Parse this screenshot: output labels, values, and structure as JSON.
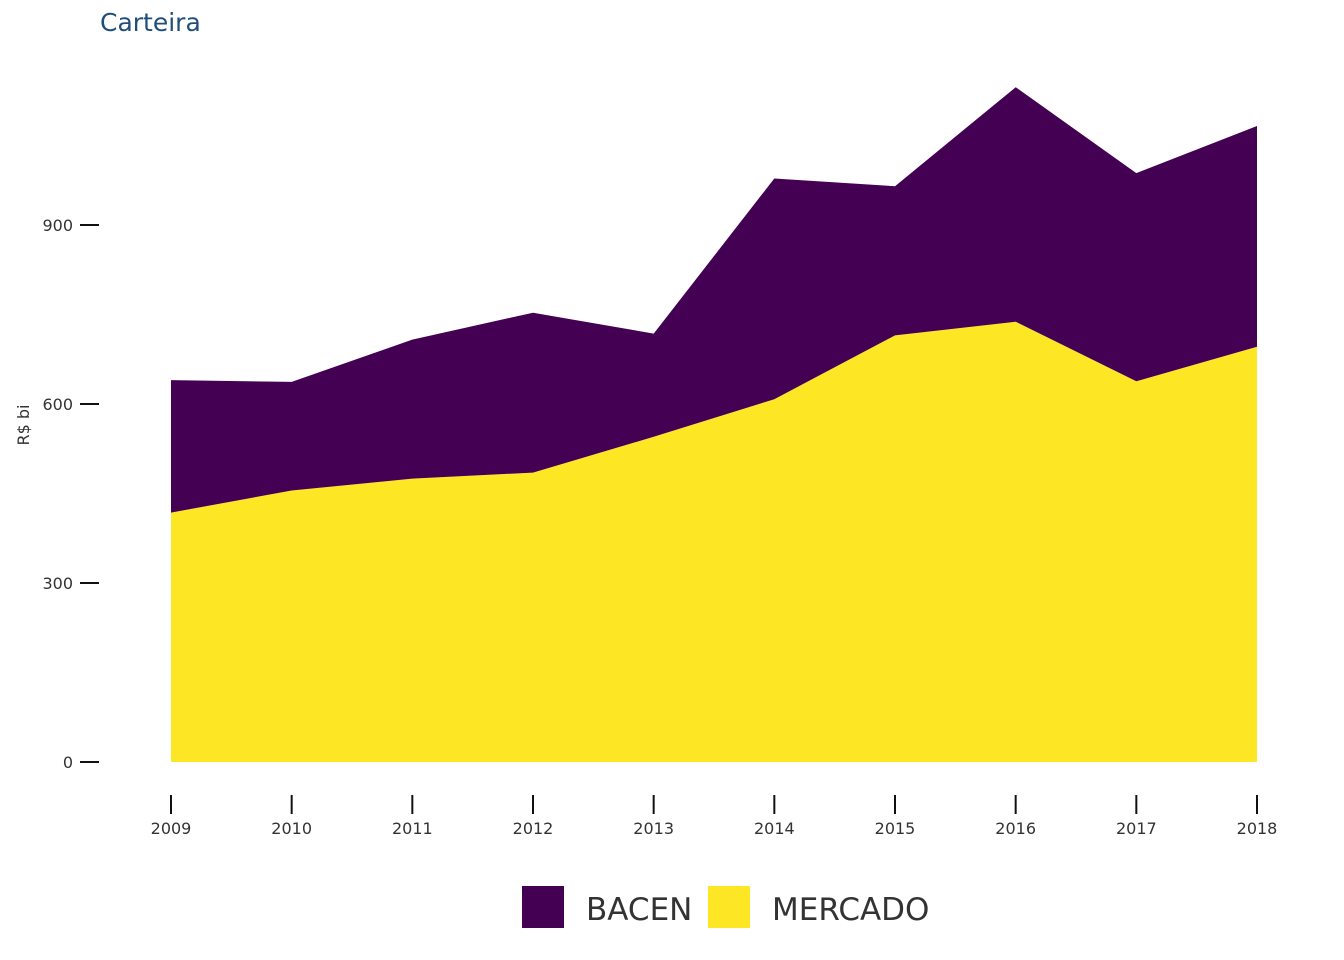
{
  "chart_data": {
    "type": "area",
    "stacked": true,
    "title": "Carteira",
    "ylabel": "R$ bi",
    "xlabel": "",
    "x": [
      2009,
      2010,
      2011,
      2012,
      2013,
      2014,
      2015,
      2016,
      2017,
      2018
    ],
    "x_tick_labels": [
      "2009",
      "2010",
      "2011",
      "2012",
      "2013",
      "2014",
      "2015",
      "2016",
      "2017",
      "2018"
    ],
    "ylim": [
      0,
      1150
    ],
    "y_ticks": [
      0,
      300,
      600,
      900
    ],
    "y_tick_labels": [
      "0",
      "300",
      "600",
      "900"
    ],
    "series": [
      {
        "name": "MERCADO",
        "color": "#fde725",
        "values": [
          418,
          455,
          475,
          485,
          545,
          608,
          715,
          738,
          638,
          696
        ]
      },
      {
        "name": "BACEN",
        "color": "#440154",
        "values": [
          222,
          182,
          233,
          268,
          173,
          370,
          250,
          393,
          349,
          370
        ]
      }
    ],
    "legend": {
      "position": "bottom",
      "order": [
        "BACEN",
        "MERCADO"
      ]
    },
    "grid": false
  }
}
